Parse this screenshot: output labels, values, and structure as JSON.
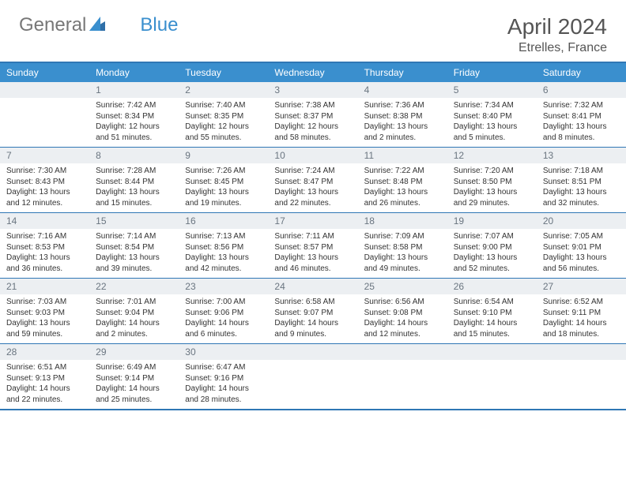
{
  "logo": {
    "text1": "General",
    "text2": "Blue"
  },
  "title": "April 2024",
  "location": "Etrelles, France",
  "colors": {
    "header_bg": "#3a8fce",
    "header_text": "#ffffff",
    "daynum_bg": "#eceff2",
    "daynum_text": "#6a7580",
    "border": "#2f77b5",
    "body_text": "#333333"
  },
  "weekdays": [
    "Sunday",
    "Monday",
    "Tuesday",
    "Wednesday",
    "Thursday",
    "Friday",
    "Saturday"
  ],
  "weeks": [
    [
      {
        "n": "",
        "sunrise": "",
        "sunset": "",
        "daylight": ""
      },
      {
        "n": "1",
        "sunrise": "7:42 AM",
        "sunset": "8:34 PM",
        "daylight": "12 hours and 51 minutes."
      },
      {
        "n": "2",
        "sunrise": "7:40 AM",
        "sunset": "8:35 PM",
        "daylight": "12 hours and 55 minutes."
      },
      {
        "n": "3",
        "sunrise": "7:38 AM",
        "sunset": "8:37 PM",
        "daylight": "12 hours and 58 minutes."
      },
      {
        "n": "4",
        "sunrise": "7:36 AM",
        "sunset": "8:38 PM",
        "daylight": "13 hours and 2 minutes."
      },
      {
        "n": "5",
        "sunrise": "7:34 AM",
        "sunset": "8:40 PM",
        "daylight": "13 hours and 5 minutes."
      },
      {
        "n": "6",
        "sunrise": "7:32 AM",
        "sunset": "8:41 PM",
        "daylight": "13 hours and 8 minutes."
      }
    ],
    [
      {
        "n": "7",
        "sunrise": "7:30 AM",
        "sunset": "8:43 PM",
        "daylight": "13 hours and 12 minutes."
      },
      {
        "n": "8",
        "sunrise": "7:28 AM",
        "sunset": "8:44 PM",
        "daylight": "13 hours and 15 minutes."
      },
      {
        "n": "9",
        "sunrise": "7:26 AM",
        "sunset": "8:45 PM",
        "daylight": "13 hours and 19 minutes."
      },
      {
        "n": "10",
        "sunrise": "7:24 AM",
        "sunset": "8:47 PM",
        "daylight": "13 hours and 22 minutes."
      },
      {
        "n": "11",
        "sunrise": "7:22 AM",
        "sunset": "8:48 PM",
        "daylight": "13 hours and 26 minutes."
      },
      {
        "n": "12",
        "sunrise": "7:20 AM",
        "sunset": "8:50 PM",
        "daylight": "13 hours and 29 minutes."
      },
      {
        "n": "13",
        "sunrise": "7:18 AM",
        "sunset": "8:51 PM",
        "daylight": "13 hours and 32 minutes."
      }
    ],
    [
      {
        "n": "14",
        "sunrise": "7:16 AM",
        "sunset": "8:53 PM",
        "daylight": "13 hours and 36 minutes."
      },
      {
        "n": "15",
        "sunrise": "7:14 AM",
        "sunset": "8:54 PM",
        "daylight": "13 hours and 39 minutes."
      },
      {
        "n": "16",
        "sunrise": "7:13 AM",
        "sunset": "8:56 PM",
        "daylight": "13 hours and 42 minutes."
      },
      {
        "n": "17",
        "sunrise": "7:11 AM",
        "sunset": "8:57 PM",
        "daylight": "13 hours and 46 minutes."
      },
      {
        "n": "18",
        "sunrise": "7:09 AM",
        "sunset": "8:58 PM",
        "daylight": "13 hours and 49 minutes."
      },
      {
        "n": "19",
        "sunrise": "7:07 AM",
        "sunset": "9:00 PM",
        "daylight": "13 hours and 52 minutes."
      },
      {
        "n": "20",
        "sunrise": "7:05 AM",
        "sunset": "9:01 PM",
        "daylight": "13 hours and 56 minutes."
      }
    ],
    [
      {
        "n": "21",
        "sunrise": "7:03 AM",
        "sunset": "9:03 PM",
        "daylight": "13 hours and 59 minutes."
      },
      {
        "n": "22",
        "sunrise": "7:01 AM",
        "sunset": "9:04 PM",
        "daylight": "14 hours and 2 minutes."
      },
      {
        "n": "23",
        "sunrise": "7:00 AM",
        "sunset": "9:06 PM",
        "daylight": "14 hours and 6 minutes."
      },
      {
        "n": "24",
        "sunrise": "6:58 AM",
        "sunset": "9:07 PM",
        "daylight": "14 hours and 9 minutes."
      },
      {
        "n": "25",
        "sunrise": "6:56 AM",
        "sunset": "9:08 PM",
        "daylight": "14 hours and 12 minutes."
      },
      {
        "n": "26",
        "sunrise": "6:54 AM",
        "sunset": "9:10 PM",
        "daylight": "14 hours and 15 minutes."
      },
      {
        "n": "27",
        "sunrise": "6:52 AM",
        "sunset": "9:11 PM",
        "daylight": "14 hours and 18 minutes."
      }
    ],
    [
      {
        "n": "28",
        "sunrise": "6:51 AM",
        "sunset": "9:13 PM",
        "daylight": "14 hours and 22 minutes."
      },
      {
        "n": "29",
        "sunrise": "6:49 AM",
        "sunset": "9:14 PM",
        "daylight": "14 hours and 25 minutes."
      },
      {
        "n": "30",
        "sunrise": "6:47 AM",
        "sunset": "9:16 PM",
        "daylight": "14 hours and 28 minutes."
      },
      {
        "n": "",
        "sunrise": "",
        "sunset": "",
        "daylight": ""
      },
      {
        "n": "",
        "sunrise": "",
        "sunset": "",
        "daylight": ""
      },
      {
        "n": "",
        "sunrise": "",
        "sunset": "",
        "daylight": ""
      },
      {
        "n": "",
        "sunrise": "",
        "sunset": "",
        "daylight": ""
      }
    ]
  ]
}
